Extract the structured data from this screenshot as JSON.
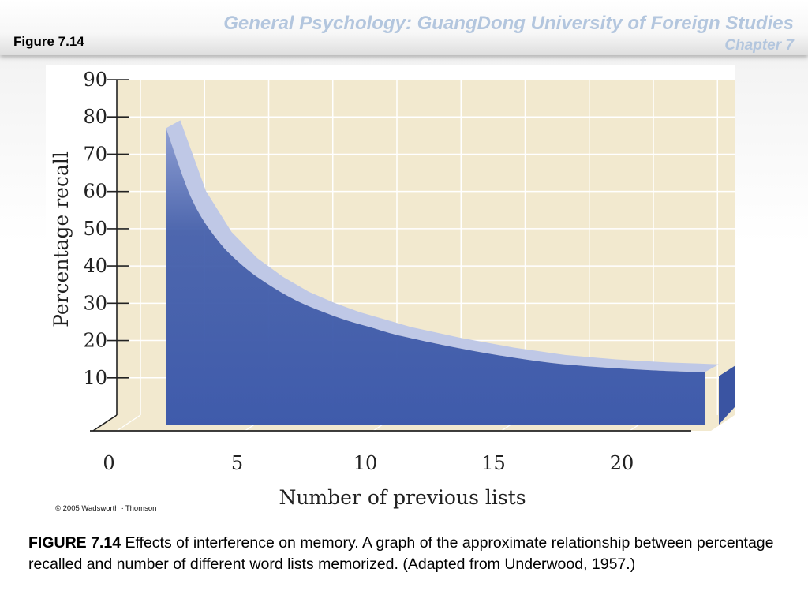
{
  "slide": {
    "figure_label": "Figure 7.14",
    "course_title": "General Psychology: GuangDong University of Foreign Studies",
    "chapter": "Chapter 7",
    "copyright": "© 2005 Wadsworth - Thomson",
    "caption_bold": "FIGURE 7.14",
    "caption_text": " Effects of interference on memory. A graph of the approximate relationship between percentage recalled and number of different word lists memorized. (Adapted from Underwood, 1957.)"
  },
  "colors": {
    "plot_background": "#f2e9cf",
    "gridline": "#ffffff",
    "area_fill": "#4560ac",
    "curve_highlight": "#bfc8e6",
    "title_accent": "#b3c6de"
  },
  "chart_data": {
    "type": "area",
    "title": "",
    "xlabel": "Number of previous lists",
    "ylabel": "Percentage recall",
    "xlim": [
      0,
      20
    ],
    "ylim": [
      0,
      90
    ],
    "x_ticks": [
      0,
      5,
      10,
      15,
      20
    ],
    "y_ticks": [
      10,
      20,
      30,
      40,
      50,
      60,
      70,
      80,
      90
    ],
    "grid": true,
    "legend": "none",
    "series": [
      {
        "x": [
          1,
          2,
          3,
          4,
          5,
          6,
          7,
          8,
          9,
          10,
          12,
          14,
          16,
          18,
          20,
          22
        ],
        "values": [
          77,
          58,
          47,
          40,
          35,
          31,
          28,
          25.5,
          23.5,
          21.5,
          18.5,
          16,
          14,
          12.8,
          12,
          11.5
        ]
      }
    ]
  }
}
